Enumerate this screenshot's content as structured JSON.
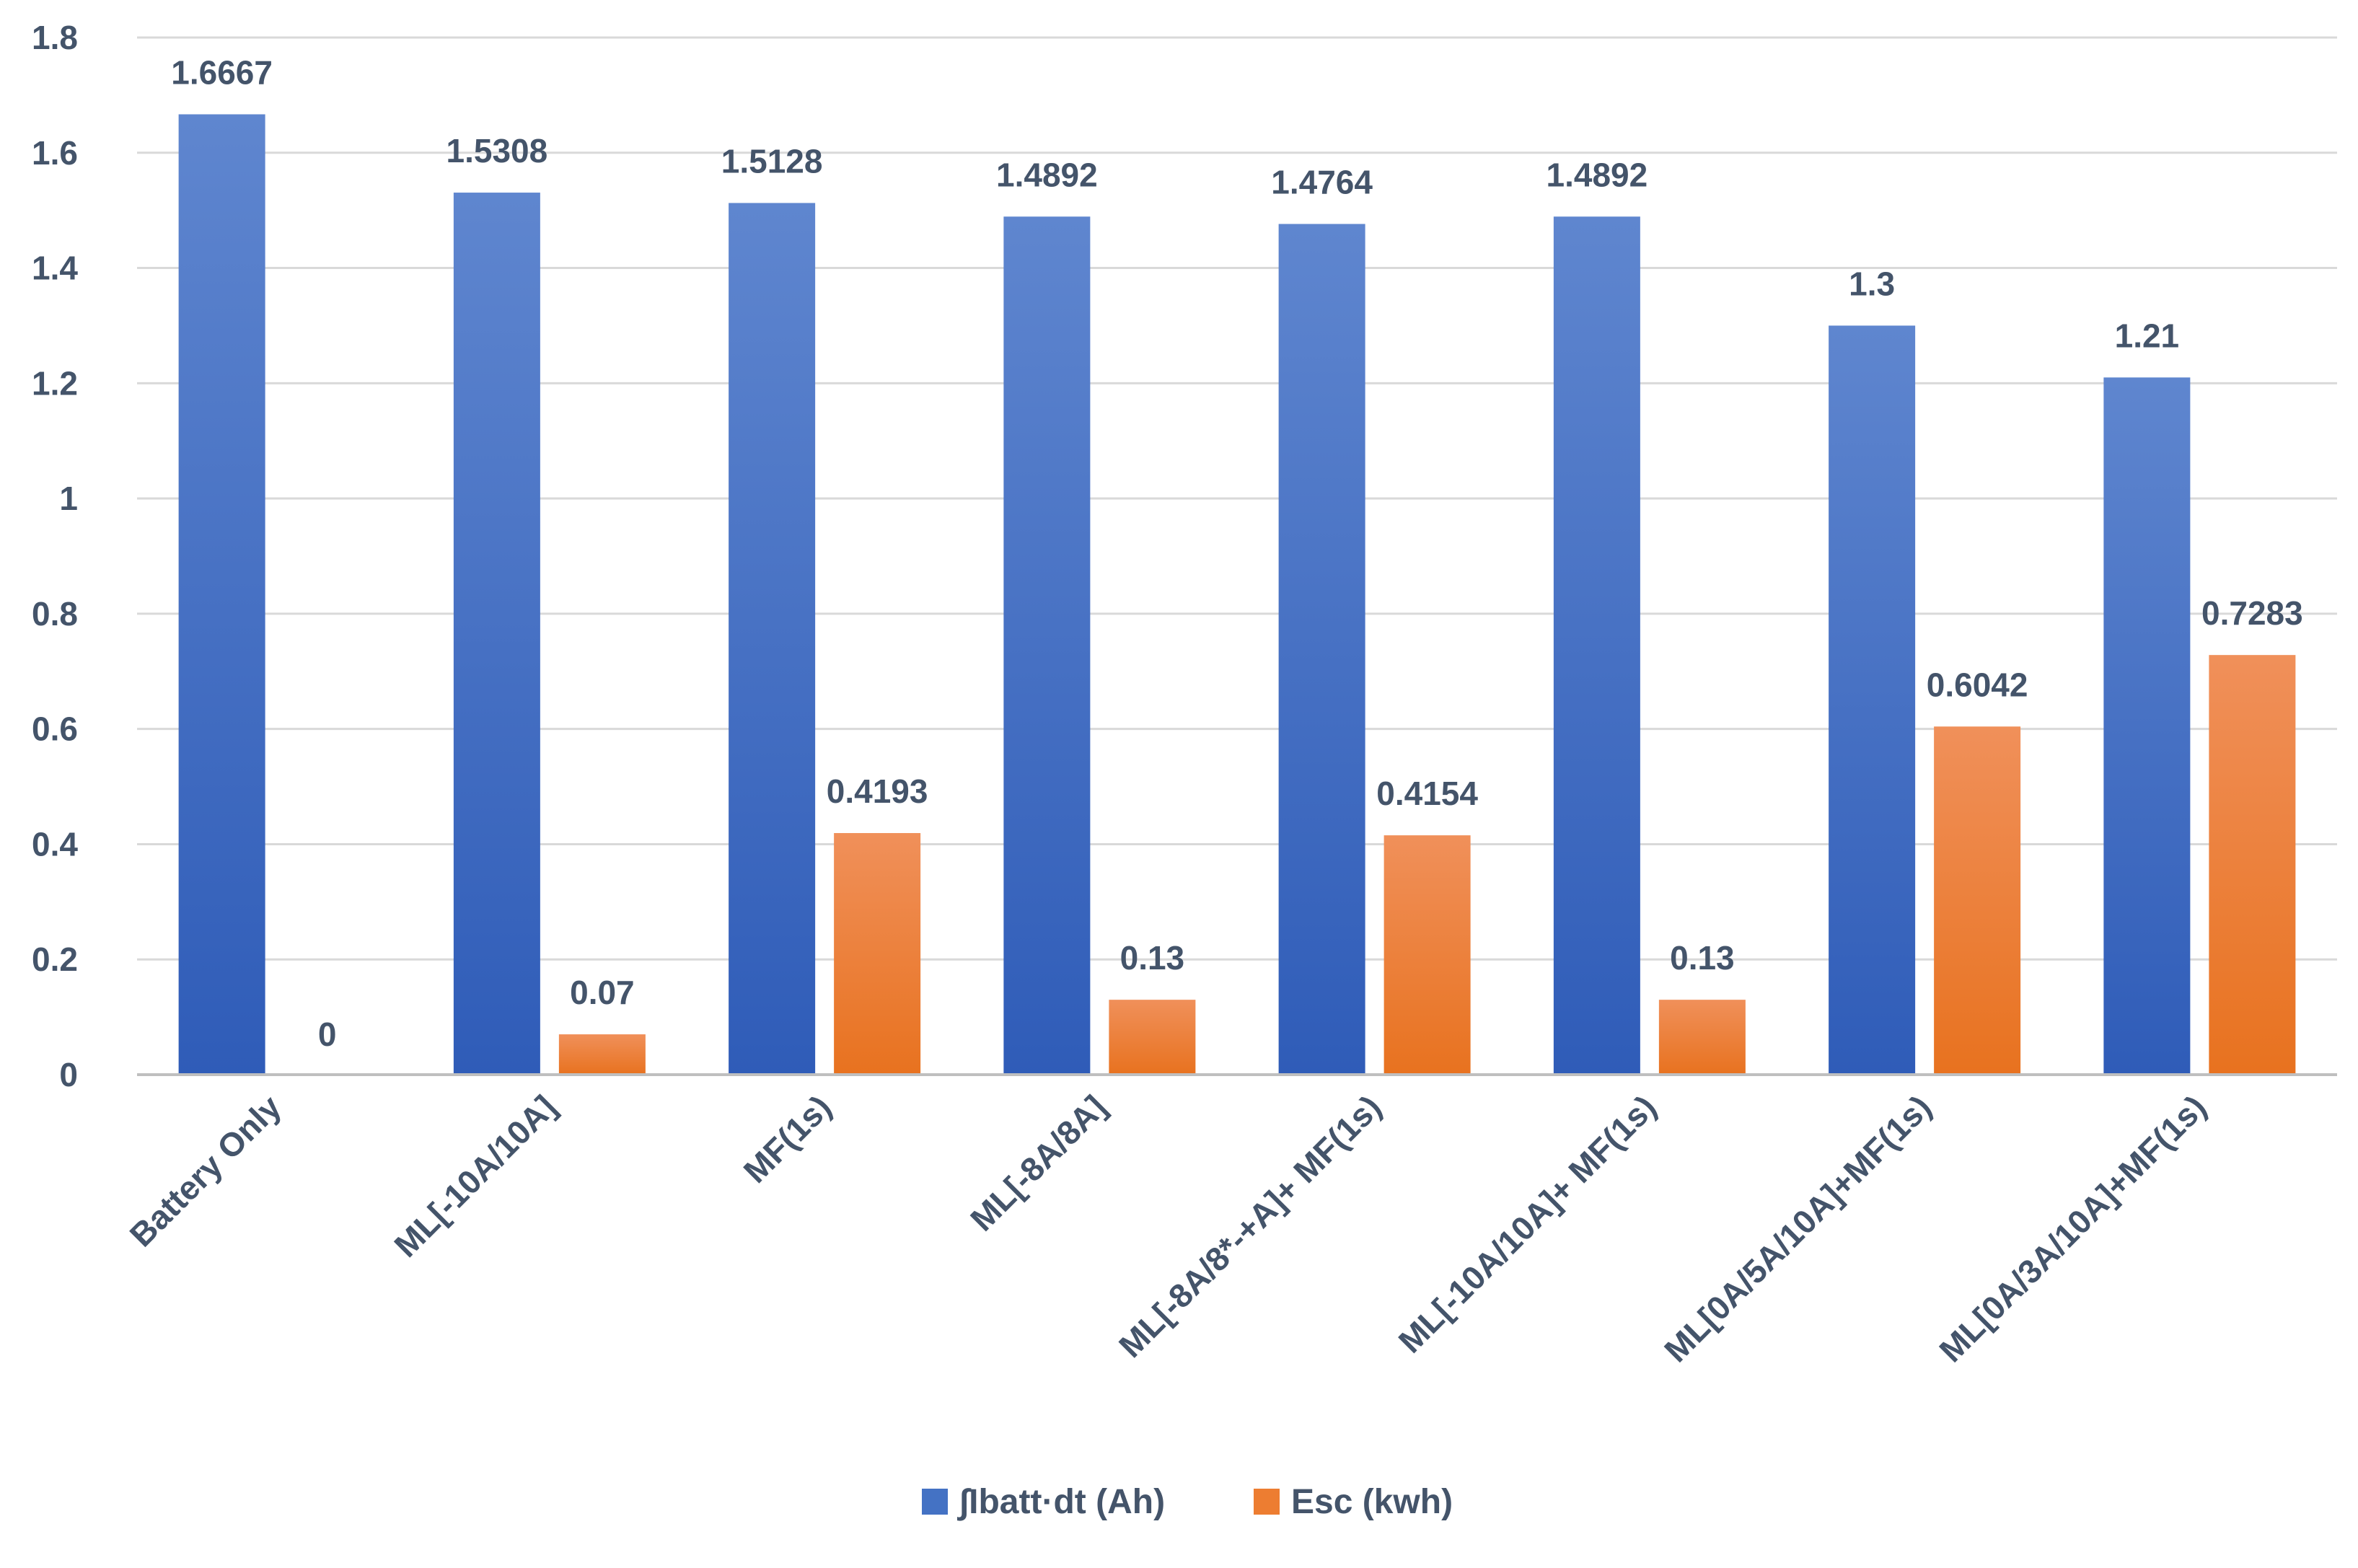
{
  "chart_data": {
    "type": "bar",
    "title": "",
    "xlabel": "",
    "ylabel": "",
    "ylim": [
      0,
      1.8
    ],
    "yticks": [
      "0",
      "0.2",
      "0.4",
      "0.6",
      "0.8",
      "1",
      "1.2",
      "1.4",
      "1.6",
      "1.8"
    ],
    "tick_values": [
      0,
      0.2,
      0.4,
      0.6,
      0.8,
      1,
      1.2,
      1.4,
      1.6,
      1.8
    ],
    "grid": true,
    "legend_position": "bottom",
    "categories": [
      "Battery Only",
      "ML[-10A/10A]",
      "MF(1s)",
      "ML[-8A/8A]",
      "ML[-8A/8*-+A]+ MF(1s)",
      "ML[-10A/10A]+ MF(1s)",
      "ML[0A/5A/10A]+MF(1s)",
      "ML[0A/3A/10A]+MF(1s)"
    ],
    "series": [
      {
        "name": "∫Ibatt·dt (Ah)",
        "color": "#4472c4",
        "color_light": "#5f86cf",
        "color_dark": "#2f5cb8",
        "values": [
          1.6667,
          1.5308,
          1.5128,
          1.4892,
          1.4764,
          1.4892,
          1.3,
          1.21
        ],
        "labels": [
          "1.6667",
          "1.5308",
          "1.5128",
          "1.4892",
          "1.4764",
          "1.4892",
          "1.3",
          "1.21"
        ]
      },
      {
        "name": "Esc (kwh)",
        "color": "#ed7d31",
        "color_light": "#f0905a",
        "color_dark": "#e8721f",
        "values": [
          0,
          0.07,
          0.4193,
          0.13,
          0.4154,
          0.13,
          0.6042,
          0.7283
        ],
        "labels": [
          "0",
          "0.07",
          "0.4193",
          "0.13",
          "0.4154",
          "0.13",
          "0.6042",
          "0.7283"
        ]
      }
    ]
  }
}
